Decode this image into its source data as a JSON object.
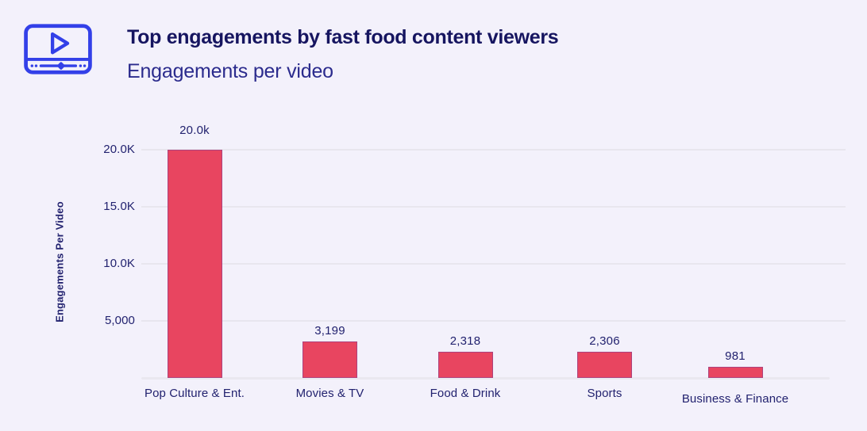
{
  "header": {
    "icon": "video-player-icon",
    "title": "Top engagements by fast food content viewers",
    "subtitle": "Engagements per video"
  },
  "chart_data": {
    "type": "bar",
    "title": "Top engagements by fast food content viewers",
    "subtitle": "Engagements per video",
    "categories": [
      "Pop Culture & Ent.",
      "Movies & TV",
      "Food & Drink",
      "Sports",
      "Business & Finance"
    ],
    "values": [
      20000,
      3199,
      2318,
      2306,
      981
    ],
    "bar_labels": [
      "20.0k",
      "3,199",
      "2,318",
      "2,306",
      "981"
    ],
    "xlabel": "",
    "ylabel": "Engagements Per Video",
    "ylim": [
      0,
      20000
    ],
    "yticks": [
      {
        "value": 20000,
        "label": "20.0K"
      },
      {
        "value": 15000,
        "label": "15.0K"
      },
      {
        "value": 10000,
        "label": "10.0K"
      },
      {
        "value": 5000,
        "label": "5,000"
      }
    ],
    "grid": true,
    "legend": false
  },
  "colors": {
    "background": "#f3f1fb",
    "bar": "#e84560",
    "accent_blue": "#3340e8",
    "title_text": "#161560",
    "subtitle_text": "#2b2b8d",
    "axis_text": "#22226f",
    "gridline": "#e8e6ee"
  }
}
